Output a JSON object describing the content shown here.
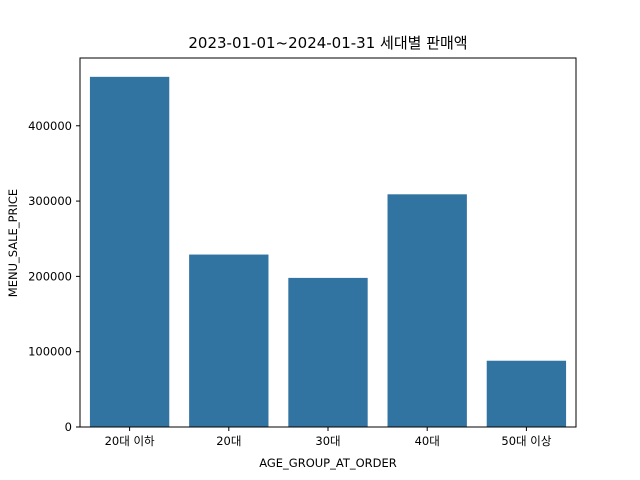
{
  "chart_data": {
    "type": "bar",
    "title": "2023-01-01~2024-01-31 세대별 판매액",
    "xlabel": "AGE_GROUP_AT_ORDER",
    "ylabel": "MENU_SALE_PRICE",
    "categories": [
      "20대 이하",
      "20대",
      "30대",
      "40대",
      "50대 이상"
    ],
    "values": [
      465000,
      229000,
      198000,
      309000,
      88000
    ],
    "ylim": [
      0,
      490000
    ],
    "yticks": [
      0,
      100000,
      200000,
      300000,
      400000
    ],
    "ytick_labels": [
      "0",
      "100000",
      "200000",
      "300000",
      "400000"
    ],
    "grid": false,
    "bar_color": "#3274a1"
  }
}
